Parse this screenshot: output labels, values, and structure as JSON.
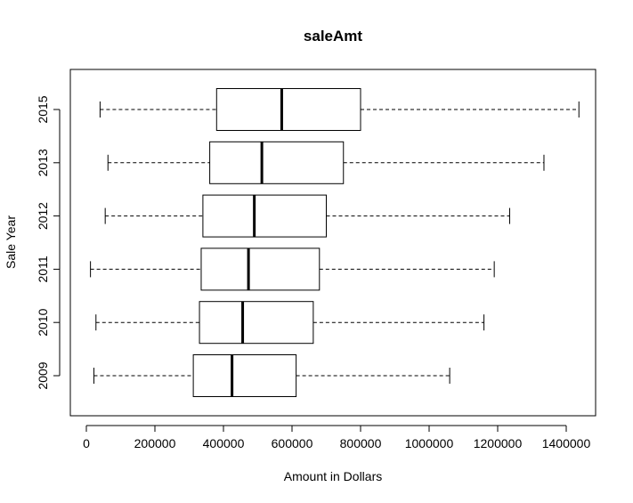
{
  "chart_data": {
    "type": "boxplot",
    "orientation": "horizontal",
    "title": "saleAmt",
    "xlabel": "Amount in Dollars",
    "ylabel": "Sale Year",
    "xlim": [
      0,
      1400000
    ],
    "x_ticks": [
      0,
      200000,
      400000,
      600000,
      800000,
      1000000,
      1200000,
      1400000
    ],
    "x_tick_labels": [
      "0",
      "200000",
      "400000",
      "600000",
      "800000",
      "1000000",
      "1200000",
      "1400000"
    ],
    "categories": [
      "2009",
      "2010",
      "2011",
      "2012",
      "2013",
      "2015"
    ],
    "boxes": [
      {
        "name": "2009",
        "whisker_low": 22000,
        "q1": 312000,
        "median": 425000,
        "q3": 612000,
        "whisker_high": 1060000
      },
      {
        "name": "2010",
        "whisker_low": 28000,
        "q1": 330000,
        "median": 456000,
        "q3": 662000,
        "whisker_high": 1160000
      },
      {
        "name": "2011",
        "whisker_low": 12000,
        "q1": 335000,
        "median": 473000,
        "q3": 680000,
        "whisker_high": 1190000
      },
      {
        "name": "2012",
        "whisker_low": 55000,
        "q1": 340000,
        "median": 490000,
        "q3": 700000,
        "whisker_high": 1235000
      },
      {
        "name": "2013",
        "whisker_low": 63000,
        "q1": 360000,
        "median": 512000,
        "q3": 750000,
        "whisker_high": 1335000
      },
      {
        "name": "2015",
        "whisker_low": 40000,
        "q1": 380000,
        "median": 570000,
        "q3": 800000,
        "whisker_high": 1437000
      }
    ],
    "grid": false,
    "colors": {
      "box_fill": "#ffffff",
      "stroke": "#000000"
    }
  }
}
